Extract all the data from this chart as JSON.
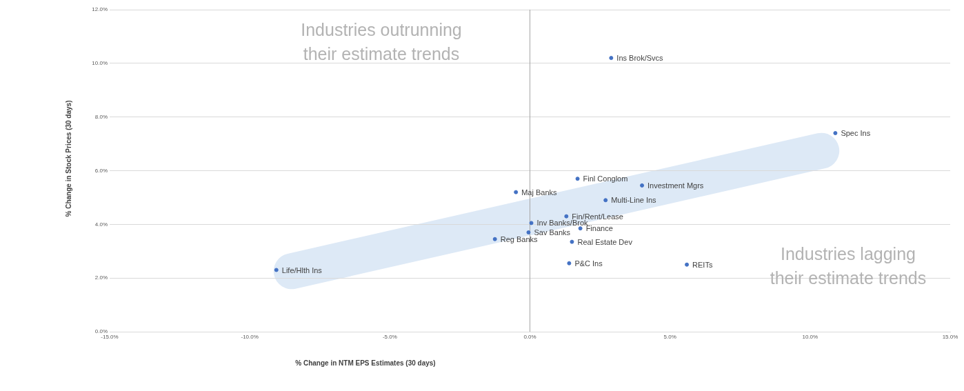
{
  "chart_data": {
    "type": "scatter",
    "xlabel": "% Change in NTM EPS Estimates (30 days)",
    "ylabel": "% Change in Stock Prices (30 days)",
    "x": [
      2.9,
      10.9,
      1.7,
      4.0,
      -0.5,
      2.7,
      1.3,
      0.05,
      1.8,
      -0.05,
      -1.25,
      1.5,
      1.4,
      5.6,
      -9.05
    ],
    "values": [
      10.2,
      7.4,
      5.7,
      5.45,
      5.2,
      4.9,
      4.3,
      4.05,
      3.85,
      3.7,
      3.45,
      3.35,
      2.55,
      2.5,
      2.3
    ],
    "color": "#4472c4",
    "marker": "circle",
    "grid": "y",
    "xlim": [
      -15,
      15
    ],
    "ylim": [
      0,
      12
    ],
    "xticks": [
      {
        "value": -15,
        "label": "-15.0%"
      },
      {
        "value": -10,
        "label": "-10.0%"
      },
      {
        "value": -5,
        "label": "-5.0%"
      },
      {
        "value": 0,
        "label": "0.0%"
      },
      {
        "value": 5,
        "label": "5.0%"
      },
      {
        "value": 10,
        "label": "10.0%"
      },
      {
        "value": 15,
        "label": "15.0%"
      }
    ],
    "yticks": [
      {
        "value": 0,
        "label": "0.0%"
      },
      {
        "value": 2,
        "label": "2.0%"
      },
      {
        "value": 4,
        "label": "4.0%"
      },
      {
        "value": 6,
        "label": "6.0%"
      },
      {
        "value": 8,
        "label": "8.0%"
      },
      {
        "value": 10,
        "label": "10.0%"
      },
      {
        "value": 12,
        "label": "12.0%"
      }
    ],
    "ref_lines": [
      {
        "axis": "x",
        "value": 0,
        "color": "#a6a6a6"
      }
    ],
    "annotations": [
      "Industries outrunning\ntheir estimate trends",
      "Industries lagging\ntheir estimate trends",
      {
        "text": "Ins Brok/Svcs",
        "x": 2.9,
        "y": 10.2
      },
      {
        "text": "Spec Ins",
        "x": 10.9,
        "y": 7.4
      },
      {
        "text": "Finl Conglom",
        "x": 1.7,
        "y": 5.7
      },
      {
        "text": "Investment Mgrs",
        "x": 4.0,
        "y": 5.45
      },
      {
        "text": "Maj Banks",
        "x": -0.5,
        "y": 5.2
      },
      {
        "text": "Multi-Line Ins",
        "x": 2.7,
        "y": 4.9
      },
      {
        "text": "Fin/Rent/Lease",
        "x": 1.3,
        "y": 4.3
      },
      {
        "text": "Inv Banks/Brok",
        "x": 0.05,
        "y": 4.05
      },
      {
        "text": "Finance",
        "x": 1.8,
        "y": 3.85
      },
      {
        "text": "Sav Banks",
        "x": -0.05,
        "y": 3.7
      },
      {
        "text": "Reg Banks",
        "x": -1.25,
        "y": 3.45
      },
      {
        "text": "Real Estate Dev",
        "x": 1.5,
        "y": 3.35
      },
      {
        "text": "P&C Ins",
        "x": 1.4,
        "y": 2.55
      },
      {
        "text": "REITs",
        "x": 5.6,
        "y": 2.5
      },
      {
        "text": "Life/Hlth Ins",
        "x": -9.05,
        "y": 2.3
      }
    ]
  }
}
